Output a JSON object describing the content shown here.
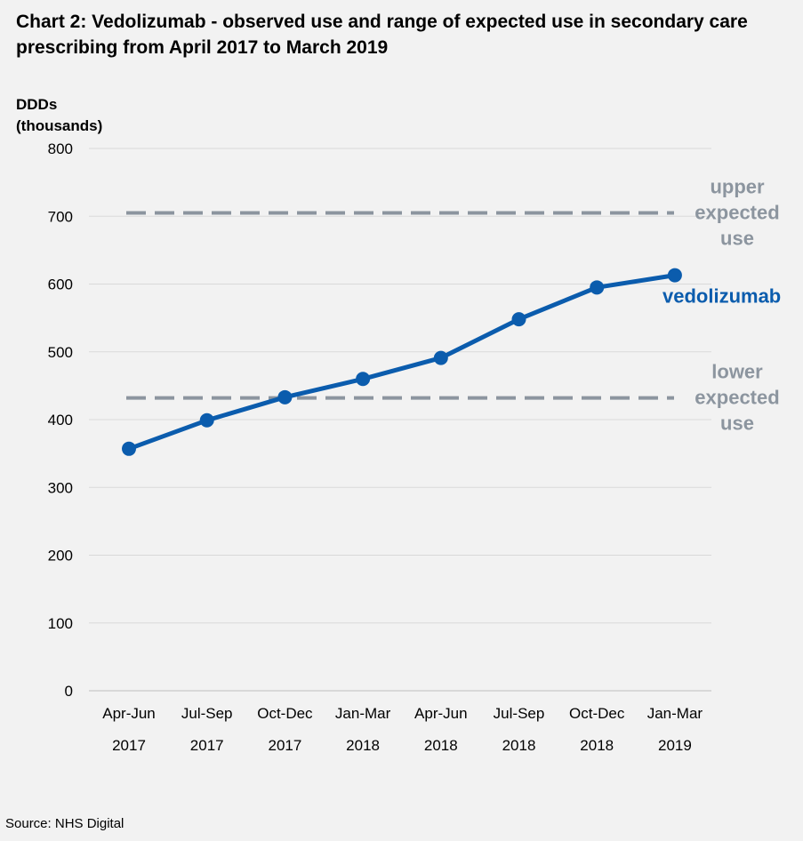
{
  "title": "Chart 2: Vedolizumab - observed use and range of expected use in secondary care prescribing from April 2017 to March 2019",
  "source": "Source: NHS Digital",
  "chart_data": {
    "type": "line",
    "title": "Chart 2: Vedolizumab - observed use and range of expected use in secondary care prescribing from April 2017 to March 2019",
    "ylabel": [
      "DDDs",
      "(thousands)"
    ],
    "ylim": [
      0,
      800
    ],
    "yticks": [
      0,
      100,
      200,
      300,
      400,
      500,
      600,
      700,
      800
    ],
    "grid": true,
    "categories": [
      [
        "Apr-Jun",
        "2017"
      ],
      [
        "Jul-Sep",
        "2017"
      ],
      [
        "Oct-Dec",
        "2017"
      ],
      [
        "Jan-Mar",
        "2018"
      ],
      [
        "Apr-Jun",
        "2018"
      ],
      [
        "Jul-Sep",
        "2018"
      ],
      [
        "Oct-Dec",
        "2018"
      ],
      [
        "Jan-Mar",
        "2019"
      ]
    ],
    "series": [
      {
        "name": "vedolizumab",
        "color": "#0b5cad",
        "style": "solid",
        "values": [
          357,
          399,
          433,
          460,
          491,
          548,
          595,
          613
        ]
      }
    ],
    "reference_lines": [
      {
        "name": [
          "upper",
          "expected",
          "use"
        ],
        "value": 705,
        "color": "#8c959f",
        "style": "dashed"
      },
      {
        "name": [
          "lower",
          "expected",
          "use"
        ],
        "value": 432,
        "color": "#8c959f",
        "style": "dashed"
      }
    ]
  }
}
